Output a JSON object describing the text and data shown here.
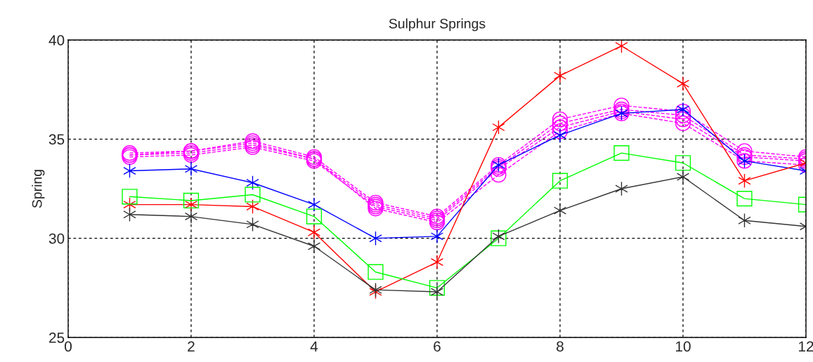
{
  "chart_data": {
    "type": "line",
    "title": "Sulphur Springs",
    "ylabel": "Spring",
    "x": [
      1,
      2,
      3,
      4,
      5,
      6,
      7,
      8,
      9,
      10,
      11,
      12
    ],
    "xlim": [
      0,
      12
    ],
    "xticks": [
      0,
      2,
      4,
      6,
      8,
      10,
      12
    ],
    "ylim": [
      25,
      40
    ],
    "yticks": [
      25,
      30,
      35,
      40
    ],
    "grid": true,
    "series": [
      {
        "color": "#ff00ff",
        "marker": "circle",
        "line_style": "dashed",
        "values": [
          34.3,
          34.4,
          34.9,
          34.1,
          31.8,
          31.1,
          33.7,
          36.0,
          36.7,
          36.4,
          34.4,
          34.1
        ]
      },
      {
        "color": "#ff00ff",
        "marker": "circle",
        "line_style": "dashed",
        "values": [
          34.2,
          34.3,
          34.7,
          34.0,
          31.7,
          31.0,
          33.6,
          35.8,
          36.5,
          36.2,
          34.2,
          34.0
        ]
      },
      {
        "color": "#ff00ff",
        "marker": "circle",
        "line_style": "dashed",
        "values": [
          34.1,
          34.2,
          34.6,
          33.9,
          31.6,
          30.9,
          33.5,
          35.6,
          36.4,
          36.0,
          34.1,
          33.9
        ]
      },
      {
        "color": "#ff00ff",
        "marker": "circle",
        "line_style": "dashed",
        "values": [
          34.2,
          34.4,
          34.8,
          34.0,
          31.5,
          30.8,
          33.2,
          35.4,
          36.3,
          35.8,
          33.9,
          33.7
        ]
      },
      {
        "color": "#0000ff",
        "marker": "cross",
        "line_style": "solid",
        "values": [
          33.4,
          33.5,
          32.8,
          31.7,
          30.0,
          30.1,
          33.7,
          35.2,
          36.3,
          36.5,
          33.9,
          33.4
        ]
      },
      {
        "color": "#ff0000",
        "marker": "cross",
        "line_style": "solid",
        "values": [
          31.7,
          31.7,
          31.6,
          30.3,
          27.3,
          28.8,
          35.6,
          38.2,
          39.7,
          37.8,
          32.9,
          33.8
        ]
      },
      {
        "color": "#00ff00",
        "marker": "square",
        "line_style": "solid",
        "values": [
          32.1,
          31.9,
          32.2,
          31.1,
          28.3,
          27.5,
          30.0,
          32.9,
          34.3,
          33.8,
          32.0,
          31.7
        ]
      },
      {
        "color": "#333333",
        "marker": "cross",
        "line_style": "solid",
        "values": [
          31.2,
          31.1,
          30.7,
          29.6,
          27.4,
          27.3,
          30.1,
          31.4,
          32.5,
          33.1,
          30.9,
          30.6
        ]
      }
    ]
  }
}
